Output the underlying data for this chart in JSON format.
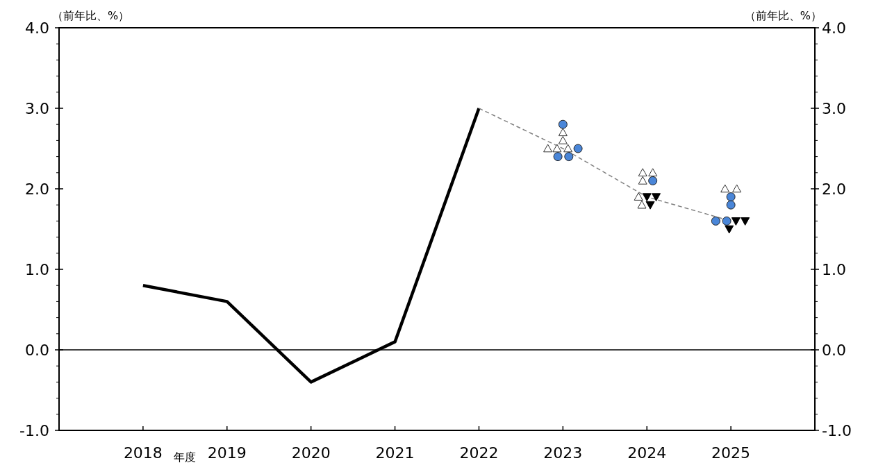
{
  "chart_data": {
    "type": "line",
    "ylabel": "（前年比、%）",
    "y2label": "（前年比、%）",
    "xlabel": "年度",
    "xlim": [
      2017,
      2026
    ],
    "xticks": [
      2018,
      2019,
      2020,
      2021,
      2022,
      2023,
      2024,
      2025
    ],
    "ylim": [
      -1,
      4
    ],
    "y2lim": [
      -1,
      4
    ],
    "yticks": [
      {
        "value": -1,
        "label": "-1.0"
      },
      {
        "value": -0.8,
        "label": null
      },
      {
        "value": -0.6,
        "label": null
      },
      {
        "value": -0.4,
        "label": null
      },
      {
        "value": -0.2,
        "label": null
      },
      {
        "value": 0,
        "label": "0.0"
      },
      {
        "value": 0.2,
        "label": null
      },
      {
        "value": 0.4,
        "label": null
      },
      {
        "value": 0.6,
        "label": null
      },
      {
        "value": 0.8,
        "label": null
      },
      {
        "value": 1,
        "label": "1.0"
      },
      {
        "value": 1.2,
        "label": null
      },
      {
        "value": 1.4,
        "label": null
      },
      {
        "value": 1.6,
        "label": null
      },
      {
        "value": 1.8,
        "label": null
      },
      {
        "value": 2,
        "label": "2.0"
      },
      {
        "value": 2.2,
        "label": null
      },
      {
        "value": 2.4,
        "label": null
      },
      {
        "value": 2.6,
        "label": null
      },
      {
        "value": 2.8,
        "label": null
      },
      {
        "value": 3,
        "label": "3.0"
      },
      {
        "value": 3.2,
        "label": null
      },
      {
        "value": 3.4,
        "label": null
      },
      {
        "value": 3.6,
        "label": null
      },
      {
        "value": 3.8,
        "label": null
      },
      {
        "value": 4,
        "label": "4.0"
      }
    ],
    "y2ticks": [
      {
        "value": -1,
        "label": "-1.0"
      },
      {
        "value": -0.8,
        "label": null
      },
      {
        "value": -0.6,
        "label": null
      },
      {
        "value": -0.4,
        "label": null
      },
      {
        "value": -0.2,
        "label": null
      },
      {
        "value": 0,
        "label": "0.0"
      },
      {
        "value": 0.2,
        "label": null
      },
      {
        "value": 0.4,
        "label": null
      },
      {
        "value": 0.6,
        "label": null
      },
      {
        "value": 0.8,
        "label": null
      },
      {
        "value": 1,
        "label": "1.0"
      },
      {
        "value": 1.2,
        "label": null
      },
      {
        "value": 1.4,
        "label": null
      },
      {
        "value": 1.6,
        "label": null
      },
      {
        "value": 1.8,
        "label": null
      },
      {
        "value": 2,
        "label": "2.0"
      },
      {
        "value": 2.2,
        "label": null
      },
      {
        "value": 2.4,
        "label": null
      },
      {
        "value": 2.6,
        "label": null
      },
      {
        "value": 2.8,
        "label": null
      },
      {
        "value": 3,
        "label": "3.0"
      },
      {
        "value": 3.2,
        "label": null
      },
      {
        "value": 3.4,
        "label": null
      },
      {
        "value": 3.6,
        "label": null
      },
      {
        "value": 3.8,
        "label": null
      },
      {
        "value": 4,
        "label": "4.0"
      }
    ],
    "ref_lines": [
      {
        "axis": "y",
        "value": 0,
        "color": "#000000"
      }
    ],
    "series": [
      {
        "color": "#000000",
        "marker": "none",
        "line_style": "solid",
        "x": [
          2018,
          2019,
          2020,
          2021,
          2022
        ],
        "values": [
          0.8,
          0.6,
          -0.4,
          0.1,
          3.0
        ]
      },
      {
        "color": "#808080",
        "marker": "none",
        "line_style": "dashed",
        "x": [
          2022,
          2023,
          2024,
          2025
        ],
        "values": [
          3.0,
          2.5,
          1.9,
          1.6
        ]
      },
      {
        "type": "scatter",
        "color": "#4a86d8",
        "marker": "circle",
        "x": [
          2023.0,
          2023.18,
          2022.94,
          2023.07,
          2024.07,
          2025.0,
          2025.0,
          2024.82,
          2024.95
        ],
        "values": [
          2.8,
          2.5,
          2.4,
          2.4,
          2.1,
          1.9,
          1.8,
          1.6,
          1.6
        ]
      },
      {
        "type": "scatter",
        "color": "#ffffff",
        "marker": "triangle",
        "x": [
          2023.0,
          2023.0,
          2022.82,
          2022.93,
          2023.06,
          2023.95,
          2024.07,
          2023.95,
          2023.9,
          2023.94,
          2024.93,
          2025.07
        ],
        "values": [
          2.7,
          2.6,
          2.5,
          2.5,
          2.5,
          2.2,
          2.2,
          2.1,
          1.9,
          1.8,
          2.0,
          2.0
        ]
      },
      {
        "type": "scatter",
        "color": "#000000",
        "marker": "triangle-down",
        "x": [
          2024.0,
          2024.11,
          2024.04,
          2025.06,
          2025.17,
          2024.98
        ],
        "values": [
          1.9,
          1.9,
          1.8,
          1.6,
          1.6,
          1.5
        ]
      }
    ]
  }
}
